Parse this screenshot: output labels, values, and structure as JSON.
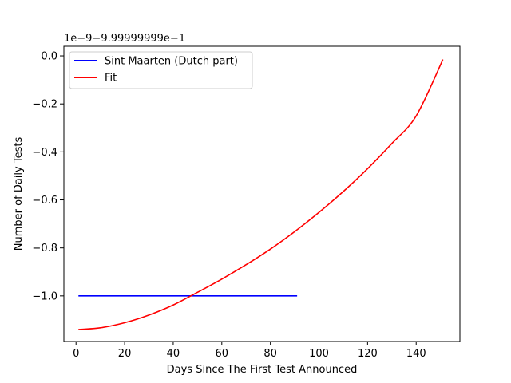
{
  "chart_data": {
    "type": "line",
    "title": "",
    "xlabel": "Days Since The First Test Announced",
    "ylabel": "Number of Daily Tests",
    "offset_text": "1e−9−9.99999999e−1",
    "xlim": [
      -5,
      158
    ],
    "ylim": [
      -1.19,
      0.04
    ],
    "x_ticks": [
      0,
      20,
      40,
      60,
      80,
      100,
      120,
      140
    ],
    "x_tick_labels": [
      "0",
      "20",
      "40",
      "60",
      "80",
      "100",
      "120",
      "140"
    ],
    "y_ticks": [
      0.0,
      -0.2,
      -0.4,
      -0.6,
      -0.8,
      -1.0
    ],
    "y_tick_labels": [
      "0.0",
      "−0.2",
      "−0.4",
      "−0.6",
      "−0.8",
      "−1.0"
    ],
    "grid": false,
    "legend_position": "top-left",
    "series": [
      {
        "name": "Sint Maarten (Dutch part)",
        "color": "#0000ff",
        "x": [
          1,
          91
        ],
        "y": [
          -1.0,
          -1.0
        ]
      },
      {
        "name": "Fit",
        "color": "#ff0000",
        "x": [
          1,
          10,
          20,
          30,
          40,
          50,
          60,
          70,
          80,
          90,
          100,
          110,
          120,
          130,
          140,
          151
        ],
        "y": [
          -1.14,
          -1.133,
          -1.112,
          -1.08,
          -1.038,
          -0.985,
          -0.93,
          -0.87,
          -0.805,
          -0.732,
          -0.652,
          -0.565,
          -0.47,
          -0.365,
          -0.25,
          -0.015
        ]
      }
    ]
  }
}
